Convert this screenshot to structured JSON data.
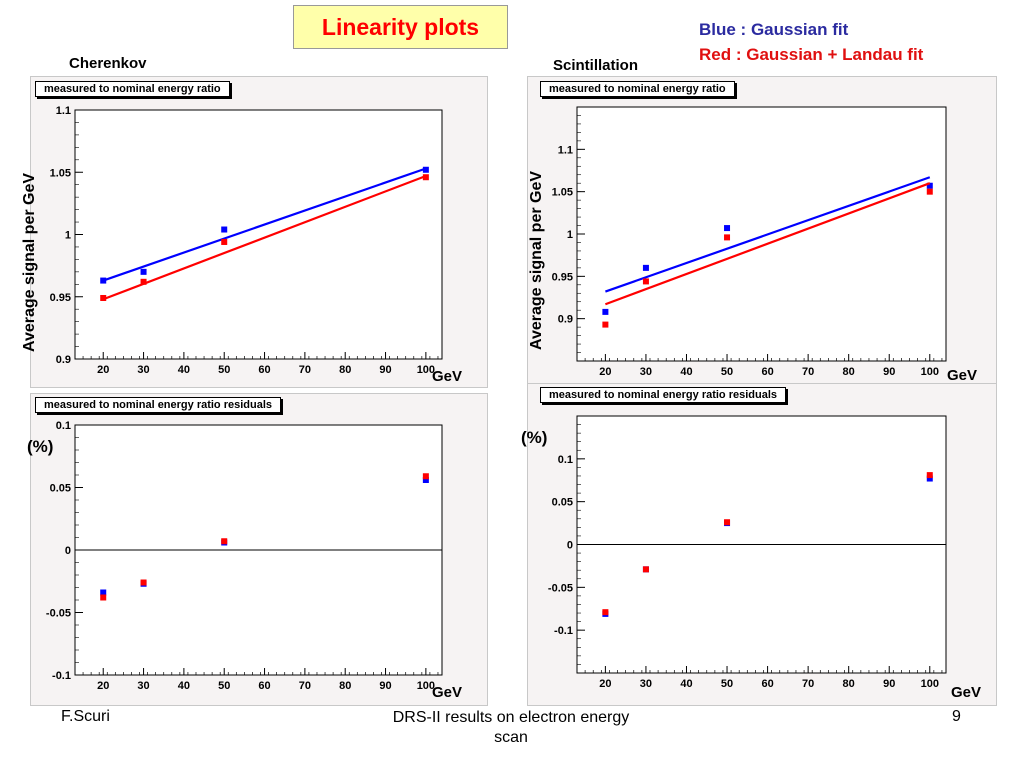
{
  "slide": {
    "title": "Linearity plots",
    "legend": {
      "blue_text": "Blue : Gaussian fit",
      "red_text": "Red : Gaussian + Landau fit",
      "blue_color": "#2b2ba0",
      "red_color": "#e01010"
    },
    "section_left": "Cherenkov",
    "section_right": "Scintillation",
    "ylabel_top": "Average signal per GeV",
    "unit_percent": "(%)",
    "xunit": "GeV",
    "footer": {
      "author": "F.Scuri",
      "title_line1": "DRS-II results on electron energy",
      "title_line2": "scan",
      "page": "9"
    }
  },
  "chart_data": [
    {
      "type": "scatter",
      "title": "measured to nominal energy ratio",
      "ylabel": "Average signal per GeV",
      "xlabel": "GeV",
      "xlim": [
        13,
        104
      ],
      "ylim": [
        0.9,
        1.1
      ],
      "xticks": [
        "20",
        "30",
        "40",
        "50",
        "60",
        "70",
        "80",
        "90",
        "100"
      ],
      "yticks": [
        "0.9",
        "0.95",
        "1",
        "1.05",
        "1.1"
      ],
      "x": [
        20,
        30,
        50,
        100
      ],
      "series": [
        {
          "name": "Gaussian fit",
          "color": "#0000ff",
          "values": [
            0.963,
            0.97,
            1.004,
            1.052
          ],
          "fit": [
            [
              20,
              0.963
            ],
            [
              100,
              1.053
            ]
          ]
        },
        {
          "name": "Gaussian + Landau fit",
          "color": "#ff0000",
          "values": [
            0.949,
            0.962,
            0.994,
            1.046
          ],
          "fit": [
            [
              20,
              0.948
            ],
            [
              100,
              1.047
            ]
          ]
        }
      ]
    },
    {
      "type": "scatter",
      "title": "measured to nominal energy ratio residuals",
      "ylabel": "(%)",
      "xlabel": "GeV",
      "xlim": [
        13,
        104
      ],
      "ylim": [
        -0.1,
        0.1
      ],
      "xticks": [
        "20",
        "30",
        "40",
        "50",
        "60",
        "70",
        "80",
        "90",
        "100"
      ],
      "yticks": [
        "-0.1",
        "-0.05",
        "0",
        "0.05",
        "0.1"
      ],
      "zero_line": true,
      "x": [
        20,
        30,
        50,
        100
      ],
      "series": [
        {
          "name": "Gaussian fit",
          "color": "#0000ff",
          "values": [
            -0.034,
            -0.027,
            0.006,
            0.056
          ]
        },
        {
          "name": "Gaussian + Landau fit",
          "color": "#ff0000",
          "values": [
            -0.038,
            -0.026,
            0.007,
            0.059
          ]
        }
      ]
    },
    {
      "type": "scatter",
      "title": "measured to nominal energy ratio",
      "ylabel": "Average signal per GeV",
      "xlabel": "GeV",
      "xlim": [
        13,
        104
      ],
      "ylim": [
        0.85,
        1.15
      ],
      "xticks": [
        "20",
        "30",
        "40",
        "50",
        "60",
        "70",
        "80",
        "90",
        "100"
      ],
      "yticks": [
        "0.9",
        "0.95",
        "1",
        "1.05",
        "1.1"
      ],
      "x": [
        20,
        30,
        50,
        100
      ],
      "series": [
        {
          "name": "Gaussian fit",
          "color": "#0000ff",
          "values": [
            0.908,
            0.96,
            1.007,
            1.057
          ],
          "fit": [
            [
              20,
              0.932
            ],
            [
              100,
              1.067
            ]
          ]
        },
        {
          "name": "Gaussian + Landau fit",
          "color": "#ff0000",
          "values": [
            0.893,
            0.944,
            0.996,
            1.05
          ],
          "fit": [
            [
              20,
              0.917
            ],
            [
              100,
              1.06
            ]
          ]
        }
      ]
    },
    {
      "type": "scatter",
      "title": "measured to nominal energy ratio residuals",
      "ylabel": "(%)",
      "xlabel": "GeV",
      "xlim": [
        13,
        104
      ],
      "ylim": [
        -0.15,
        0.15
      ],
      "xticks": [
        "20",
        "30",
        "40",
        "50",
        "60",
        "70",
        "80",
        "90",
        "100"
      ],
      "yticks": [
        "-0.1",
        "-0.05",
        "0",
        "0.05",
        "0.1"
      ],
      "zero_line": true,
      "x": [
        20,
        30,
        50,
        100
      ],
      "series": [
        {
          "name": "Gaussian fit",
          "color": "#0000ff",
          "values": [
            -0.081,
            -0.029,
            0.025,
            0.077
          ]
        },
        {
          "name": "Gaussian + Landau fit",
          "color": "#ff0000",
          "values": [
            -0.079,
            -0.029,
            0.026,
            0.081
          ]
        }
      ]
    }
  ]
}
